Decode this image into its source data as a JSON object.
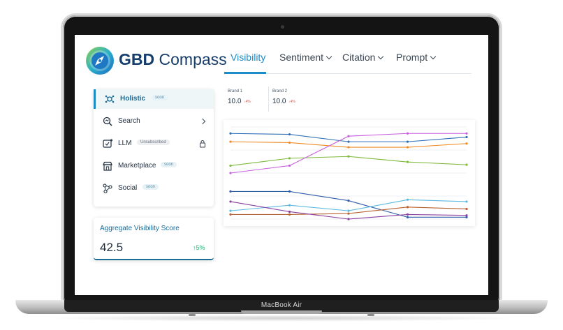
{
  "app": {
    "name_bold": "GBD",
    "name_rest": " Compass",
    "accent": "#1b8cc6",
    "brand_color": "#173e6b"
  },
  "tabs": [
    {
      "label": "Visibility",
      "active": true,
      "dropdown": false
    },
    {
      "label": "Sentiment",
      "active": false,
      "dropdown": true
    },
    {
      "label": "Citation",
      "active": false,
      "dropdown": true
    },
    {
      "label": "Prompt",
      "active": false,
      "dropdown": true
    }
  ],
  "sidebar": {
    "items": [
      {
        "label": "Holistic",
        "badge": "soon",
        "icon": "holistic-icon",
        "active": true
      },
      {
        "label": "Search",
        "badge": "",
        "icon": "search-icon",
        "active": false
      },
      {
        "label": "LLM",
        "badge": "Unsubscribed",
        "icon": "llm-icon",
        "active": false
      },
      {
        "label": "Marketplace",
        "badge": "soon",
        "icon": "marketplace-icon",
        "active": false
      },
      {
        "label": "Social",
        "badge": "soon",
        "icon": "social-icon",
        "active": false
      }
    ]
  },
  "score": {
    "title": "Aggregate Visibility Score",
    "value": "42.5",
    "delta": "↑5%",
    "delta_color": "#2bb47c"
  },
  "brands": [
    {
      "name": "Brand 1",
      "value": "10.0",
      "delta": "↓4%"
    },
    {
      "name": "Brand 2",
      "value": "10.0",
      "delta": "↓4%"
    }
  ],
  "device": {
    "label": "MacBook Air"
  },
  "chart_data": {
    "type": "line",
    "x": [
      1,
      2,
      3,
      4,
      5
    ],
    "ylim": [
      0,
      100
    ],
    "grid": true,
    "legend": "none",
    "series": [
      {
        "color": "#2f6fb7",
        "values": [
          93,
          92,
          84,
          84,
          89
        ]
      },
      {
        "color": "#f08a24",
        "values": [
          84,
          83,
          78,
          78,
          82
        ]
      },
      {
        "color": "#7fba3c",
        "values": [
          58,
          66,
          68,
          62,
          59
        ]
      },
      {
        "color": "#c95ee0",
        "values": [
          50,
          58,
          90,
          93,
          93
        ]
      },
      {
        "color": "#2f5ba7",
        "values": [
          30,
          30,
          20,
          2,
          2
        ]
      },
      {
        "color": "#5ab9e0",
        "values": [
          9,
          15,
          9,
          21,
          19
        ]
      },
      {
        "color": "#b8602f",
        "values": [
          5,
          5,
          6,
          13,
          11
        ]
      },
      {
        "color": "#8a3fa0",
        "values": [
          19,
          8,
          0,
          5,
          4
        ]
      }
    ]
  }
}
